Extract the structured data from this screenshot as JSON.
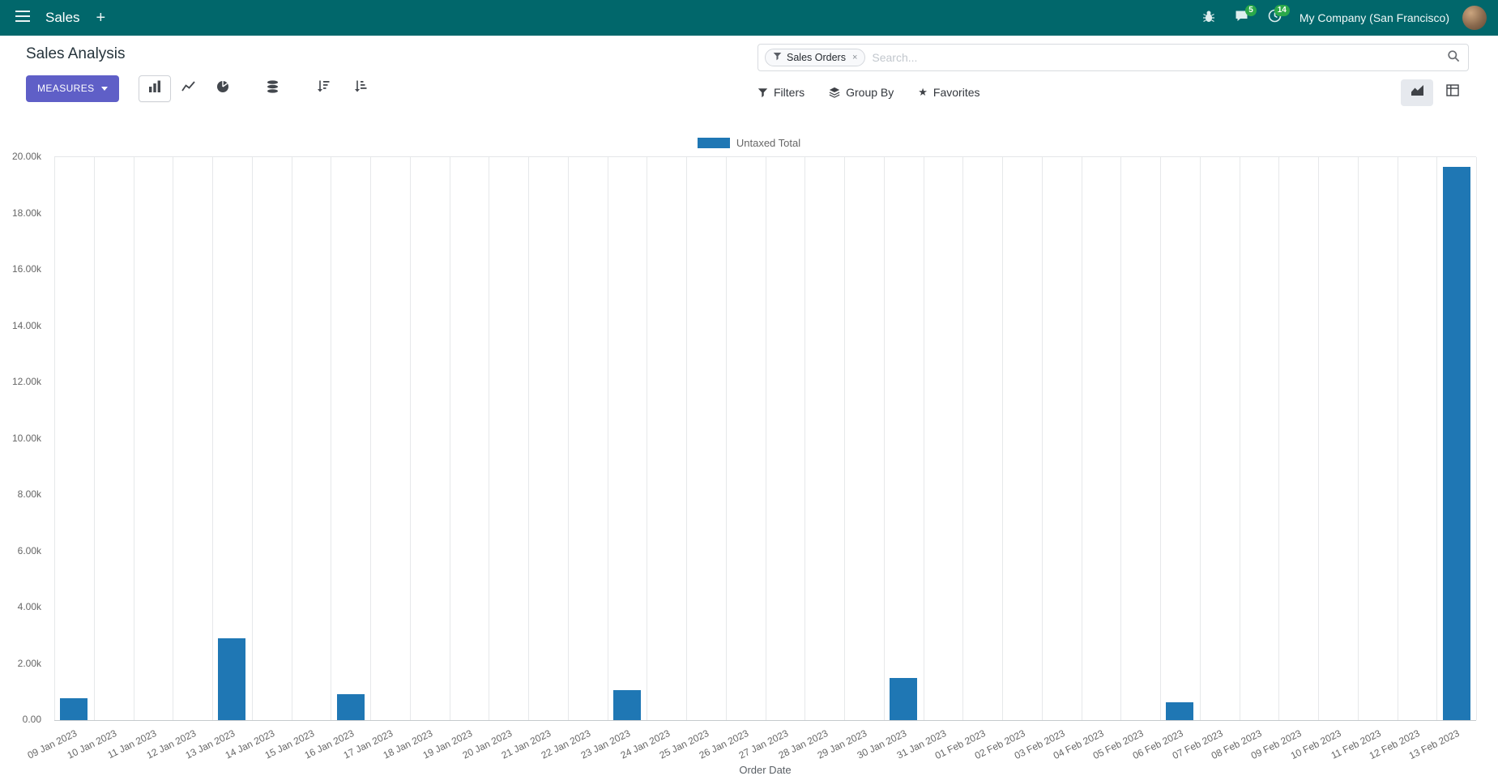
{
  "navbar": {
    "app_name": "Sales",
    "new_button": "+",
    "message_badge": "5",
    "activity_badge": "14",
    "company": "My Company (San Francisco)"
  },
  "control_panel": {
    "title": "Sales Analysis",
    "measures_button": "MEASURES",
    "filters": "Filters",
    "group_by": "Group By",
    "favorites": "Favorites",
    "search": {
      "facet_label": "Sales Orders",
      "facet_remove": "×",
      "placeholder": "Search..."
    }
  },
  "chart_data": {
    "type": "bar",
    "title": "",
    "xlabel": "Order Date",
    "ylabel": "",
    "ylim": [
      0,
      20000
    ],
    "y_ticks": [
      "0.00",
      "2.00k",
      "4.00k",
      "6.00k",
      "8.00k",
      "10.00k",
      "12.00k",
      "14.00k",
      "16.00k",
      "18.00k",
      "20.00k"
    ],
    "grid": "vertical",
    "legend_position": "top",
    "categories": [
      "09 Jan 2023",
      "10 Jan 2023",
      "11 Jan 2023",
      "12 Jan 2023",
      "13 Jan 2023",
      "14 Jan 2023",
      "15 Jan 2023",
      "16 Jan 2023",
      "17 Jan 2023",
      "18 Jan 2023",
      "19 Jan 2023",
      "20 Jan 2023",
      "21 Jan 2023",
      "22 Jan 2023",
      "23 Jan 2023",
      "24 Jan 2023",
      "25 Jan 2023",
      "26 Jan 2023",
      "27 Jan 2023",
      "28 Jan 2023",
      "29 Jan 2023",
      "30 Jan 2023",
      "31 Jan 2023",
      "01 Feb 2023",
      "02 Feb 2023",
      "03 Feb 2023",
      "04 Feb 2023",
      "05 Feb 2023",
      "06 Feb 2023",
      "07 Feb 2023",
      "08 Feb 2023",
      "09 Feb 2023",
      "10 Feb 2023",
      "11 Feb 2023",
      "12 Feb 2023",
      "13 Feb 2023"
    ],
    "series": [
      {
        "name": "Untaxed Total",
        "color": "#1f77b4",
        "values": [
          780,
          0,
          0,
          0,
          2900,
          0,
          0,
          920,
          0,
          0,
          0,
          0,
          0,
          0,
          1080,
          0,
          0,
          0,
          0,
          0,
          0,
          1500,
          0,
          0,
          0,
          0,
          0,
          0,
          640,
          0,
          0,
          0,
          0,
          0,
          0,
          19650
        ]
      }
    ]
  },
  "colors": {
    "navbar_bg": "#01676b",
    "primary_button": "#5f5fc7",
    "bar": "#1f77b4",
    "badge_green": "#2ba84a"
  }
}
